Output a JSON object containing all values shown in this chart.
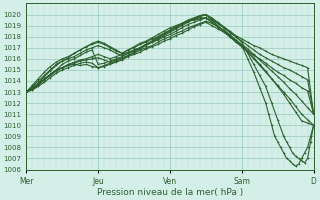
{
  "xlabel": "Pression niveau de la mer( hPa )",
  "bg_color": "#d4eee8",
  "grid_color_minor": "#b8ddd4",
  "grid_color_major": "#98c8bc",
  "line_color": "#2d6030",
  "ylim": [
    1006,
    1021
  ],
  "xlim": [
    0,
    192
  ],
  "yticks": [
    1006,
    1007,
    1008,
    1009,
    1010,
    1011,
    1012,
    1013,
    1014,
    1015,
    1016,
    1017,
    1018,
    1019,
    1020
  ],
  "xtick_labels": [
    "Mer",
    "Jeu",
    "Ven",
    "Sam",
    "D"
  ],
  "xtick_pos": [
    0,
    48,
    96,
    144,
    192
  ],
  "marker_size": 1.5,
  "series": [
    {
      "x": [
        0,
        4,
        8,
        12,
        16,
        20,
        24,
        28,
        32,
        36,
        40,
        44,
        48,
        52,
        56,
        60,
        64,
        68,
        72,
        76,
        80,
        84,
        88,
        92,
        96,
        100,
        104,
        108,
        112,
        116,
        120,
        124,
        128,
        132,
        136,
        140,
        144,
        148,
        152,
        156,
        160,
        164,
        168,
        172,
        176,
        180,
        184,
        188,
        192
      ],
      "y": [
        1013,
        1013.3,
        1013.8,
        1014.2,
        1014.6,
        1015.0,
        1015.2,
        1015.4,
        1015.5,
        1015.4,
        1015.5,
        1015.3,
        1015.2,
        1015.4,
        1015.6,
        1015.8,
        1016.0,
        1016.3,
        1016.6,
        1016.9,
        1017.2,
        1017.5,
        1017.8,
        1018.1,
        1018.4,
        1018.7,
        1019.0,
        1019.3,
        1019.6,
        1019.9,
        1020.0,
        1019.7,
        1019.3,
        1018.9,
        1018.5,
        1018.1,
        1017.8,
        1017.5,
        1017.2,
        1017.0,
        1016.7,
        1016.4,
        1016.2,
        1016.0,
        1015.8,
        1015.6,
        1015.4,
        1015.2,
        1011.0
      ]
    },
    {
      "x": [
        0,
        4,
        8,
        12,
        16,
        20,
        24,
        28,
        32,
        36,
        40,
        44,
        48,
        52,
        56,
        60,
        64,
        68,
        72,
        76,
        80,
        84,
        88,
        92,
        96,
        100,
        104,
        108,
        112,
        116,
        120,
        124,
        128,
        132,
        136,
        140,
        144,
        148,
        152,
        156,
        160,
        164,
        168,
        172,
        176,
        180,
        184,
        188,
        192
      ],
      "y": [
        1013,
        1013.5,
        1014.0,
        1014.5,
        1015.0,
        1015.5,
        1015.8,
        1016.0,
        1016.2,
        1016.5,
        1016.8,
        1017.0,
        1017.2,
        1017.0,
        1016.8,
        1016.5,
        1016.3,
        1016.5,
        1016.8,
        1017.0,
        1017.3,
        1017.6,
        1017.9,
        1018.2,
        1018.5,
        1018.8,
        1019.1,
        1019.4,
        1019.6,
        1019.8,
        1020.0,
        1019.6,
        1019.2,
        1018.8,
        1018.4,
        1018.0,
        1017.6,
        1017.2,
        1016.8,
        1016.4,
        1016.1,
        1015.8,
        1015.5,
        1015.2,
        1015.0,
        1014.7,
        1014.4,
        1014.1,
        1011.0
      ]
    },
    {
      "x": [
        0,
        4,
        8,
        12,
        16,
        20,
        24,
        28,
        32,
        36,
        40,
        44,
        48,
        52,
        56,
        60,
        64,
        68,
        72,
        76,
        80,
        84,
        88,
        92,
        96,
        100,
        104,
        108,
        112,
        116,
        120,
        124,
        128,
        132,
        136,
        140,
        144,
        148,
        152,
        156,
        160,
        164,
        168,
        172,
        176,
        180,
        184,
        188,
        192
      ],
      "y": [
        1013,
        1013.6,
        1014.2,
        1014.8,
        1015.3,
        1015.7,
        1016.0,
        1016.2,
        1016.5,
        1016.8,
        1017.1,
        1017.3,
        1017.5,
        1017.3,
        1017.0,
        1016.7,
        1016.5,
        1016.8,
        1017.0,
        1017.3,
        1017.5,
        1017.8,
        1018.0,
        1018.3,
        1018.6,
        1018.9,
        1019.2,
        1019.5,
        1019.7,
        1019.9,
        1020.0,
        1019.5,
        1019.0,
        1018.5,
        1018.0,
        1017.5,
        1017.1,
        1016.7,
        1016.3,
        1016.0,
        1015.6,
        1015.2,
        1014.8,
        1014.5,
        1014.1,
        1013.8,
        1013.4,
        1013.1,
        1011.0
      ]
    },
    {
      "x": [
        0,
        4,
        8,
        12,
        16,
        20,
        24,
        28,
        32,
        36,
        40,
        44,
        48,
        52,
        56,
        60,
        64,
        68,
        72,
        76,
        80,
        84,
        88,
        92,
        96,
        100,
        104,
        108,
        112,
        116,
        120,
        124,
        128,
        132,
        136,
        140,
        144,
        148,
        152,
        156,
        160,
        164,
        168,
        172,
        176,
        180,
        184,
        188,
        192
      ],
      "y": [
        1013,
        1013.4,
        1013.8,
        1014.4,
        1014.9,
        1015.4,
        1015.8,
        1016.1,
        1016.5,
        1016.8,
        1017.1,
        1017.4,
        1017.6,
        1017.4,
        1017.1,
        1016.8,
        1016.5,
        1016.8,
        1017.1,
        1017.4,
        1017.6,
        1017.9,
        1018.2,
        1018.5,
        1018.8,
        1019.0,
        1019.2,
        1019.4,
        1019.5,
        1019.6,
        1019.7,
        1019.3,
        1018.9,
        1018.5,
        1018.1,
        1017.7,
        1017.3,
        1016.9,
        1016.4,
        1015.9,
        1015.4,
        1014.9,
        1014.4,
        1013.9,
        1013.3,
        1012.8,
        1012.2,
        1011.6,
        1011.0
      ]
    },
    {
      "x": [
        0,
        4,
        8,
        12,
        16,
        20,
        24,
        28,
        32,
        36,
        40,
        44,
        48,
        52,
        56,
        60,
        64,
        68,
        72,
        76,
        80,
        84,
        88,
        92,
        96,
        100,
        104,
        108,
        112,
        116,
        120,
        124,
        128,
        132,
        136,
        140,
        144,
        148,
        152,
        156,
        160,
        164,
        168,
        172,
        176,
        180,
        184,
        188,
        192
      ],
      "y": [
        1013,
        1013.2,
        1013.6,
        1014.1,
        1014.6,
        1015.0,
        1015.5,
        1015.8,
        1016.0,
        1016.3,
        1016.6,
        1016.8,
        1015.5,
        1015.6,
        1015.8,
        1016.0,
        1016.2,
        1016.5,
        1016.7,
        1017.0,
        1017.3,
        1017.6,
        1018.0,
        1018.3,
        1018.6,
        1018.9,
        1019.2,
        1019.4,
        1019.6,
        1019.7,
        1019.7,
        1019.3,
        1018.9,
        1018.5,
        1018.1,
        1017.6,
        1017.1,
        1016.6,
        1016.0,
        1015.4,
        1014.8,
        1014.2,
        1013.6,
        1013.0,
        1012.4,
        1011.7,
        1011.0,
        1010.5,
        1010.0
      ]
    },
    {
      "x": [
        0,
        4,
        8,
        12,
        16,
        20,
        24,
        28,
        32,
        36,
        40,
        44,
        48,
        52,
        56,
        60,
        64,
        68,
        72,
        76,
        80,
        84,
        88,
        92,
        96,
        100,
        104,
        108,
        112,
        116,
        120,
        124,
        128,
        132,
        136,
        140,
        144,
        148,
        152,
        156,
        160,
        164,
        168,
        172,
        176,
        180,
        184,
        188,
        192
      ],
      "y": [
        1013,
        1013.2,
        1013.5,
        1013.9,
        1014.3,
        1014.7,
        1015.0,
        1015.2,
        1015.4,
        1015.6,
        1015.7,
        1015.6,
        1015.2,
        1015.3,
        1015.5,
        1015.7,
        1015.9,
        1016.2,
        1016.4,
        1016.6,
        1016.9,
        1017.1,
        1017.3,
        1017.6,
        1017.8,
        1018.1,
        1018.3,
        1018.6,
        1018.9,
        1019.1,
        1019.3,
        1019.0,
        1018.7,
        1018.4,
        1018.0,
        1017.6,
        1017.2,
        1016.7,
        1016.1,
        1015.5,
        1014.9,
        1014.2,
        1013.5,
        1012.8,
        1012.0,
        1011.2,
        1010.4,
        1010.2,
        1010.0
      ]
    },
    {
      "x": [
        0,
        4,
        8,
        12,
        16,
        20,
        24,
        28,
        32,
        36,
        40,
        44,
        48,
        52,
        56,
        60,
        64,
        68,
        72,
        76,
        80,
        84,
        88,
        92,
        96,
        100,
        104,
        108,
        112,
        116,
        120,
        124,
        128,
        132,
        136,
        140,
        144,
        148,
        152,
        156,
        160,
        164,
        168,
        172,
        174,
        176,
        178,
        180,
        182,
        184,
        186,
        188,
        190,
        192
      ],
      "y": [
        1013,
        1013.3,
        1013.7,
        1014.1,
        1014.5,
        1014.9,
        1015.2,
        1015.5,
        1015.7,
        1015.9,
        1016.0,
        1016.2,
        1016.4,
        1016.2,
        1016.0,
        1016.2,
        1016.4,
        1016.6,
        1016.8,
        1017.0,
        1017.3,
        1017.5,
        1017.7,
        1018.0,
        1018.2,
        1018.5,
        1018.8,
        1019.1,
        1019.3,
        1019.5,
        1019.7,
        1019.5,
        1019.2,
        1018.8,
        1018.4,
        1018.0,
        1017.5,
        1016.5,
        1015.5,
        1014.5,
        1013.5,
        1012.0,
        1010.5,
        1009.0,
        1008.5,
        1008.0,
        1007.5,
        1007.2,
        1007.0,
        1006.8,
        1006.6,
        1007.0,
        1008.5,
        1010.0
      ]
    },
    {
      "x": [
        0,
        4,
        8,
        12,
        16,
        20,
        24,
        28,
        32,
        36,
        40,
        44,
        48,
        52,
        56,
        60,
        64,
        68,
        72,
        76,
        80,
        84,
        88,
        92,
        96,
        100,
        104,
        108,
        112,
        116,
        120,
        124,
        128,
        132,
        136,
        140,
        144,
        148,
        152,
        156,
        160,
        162,
        164,
        166,
        168,
        170,
        172,
        174,
        176,
        178,
        180,
        182,
        184,
        186,
        188,
        190,
        192
      ],
      "y": [
        1013,
        1013.3,
        1013.7,
        1014.1,
        1014.5,
        1014.9,
        1015.2,
        1015.4,
        1015.6,
        1015.8,
        1015.9,
        1016.0,
        1016.1,
        1015.9,
        1015.7,
        1015.9,
        1016.1,
        1016.3,
        1016.5,
        1016.8,
        1017.0,
        1017.2,
        1017.5,
        1017.8,
        1018.0,
        1018.3,
        1018.5,
        1018.8,
        1019.0,
        1019.2,
        1019.4,
        1019.2,
        1018.9,
        1018.6,
        1018.2,
        1017.7,
        1017.2,
        1016.0,
        1014.8,
        1013.4,
        1012.0,
        1011.0,
        1010.0,
        1009.0,
        1008.5,
        1008.0,
        1007.5,
        1007.0,
        1006.8,
        1006.5,
        1006.3,
        1006.5,
        1007.0,
        1007.5,
        1008.0,
        1009.0,
        1010.0
      ]
    }
  ]
}
